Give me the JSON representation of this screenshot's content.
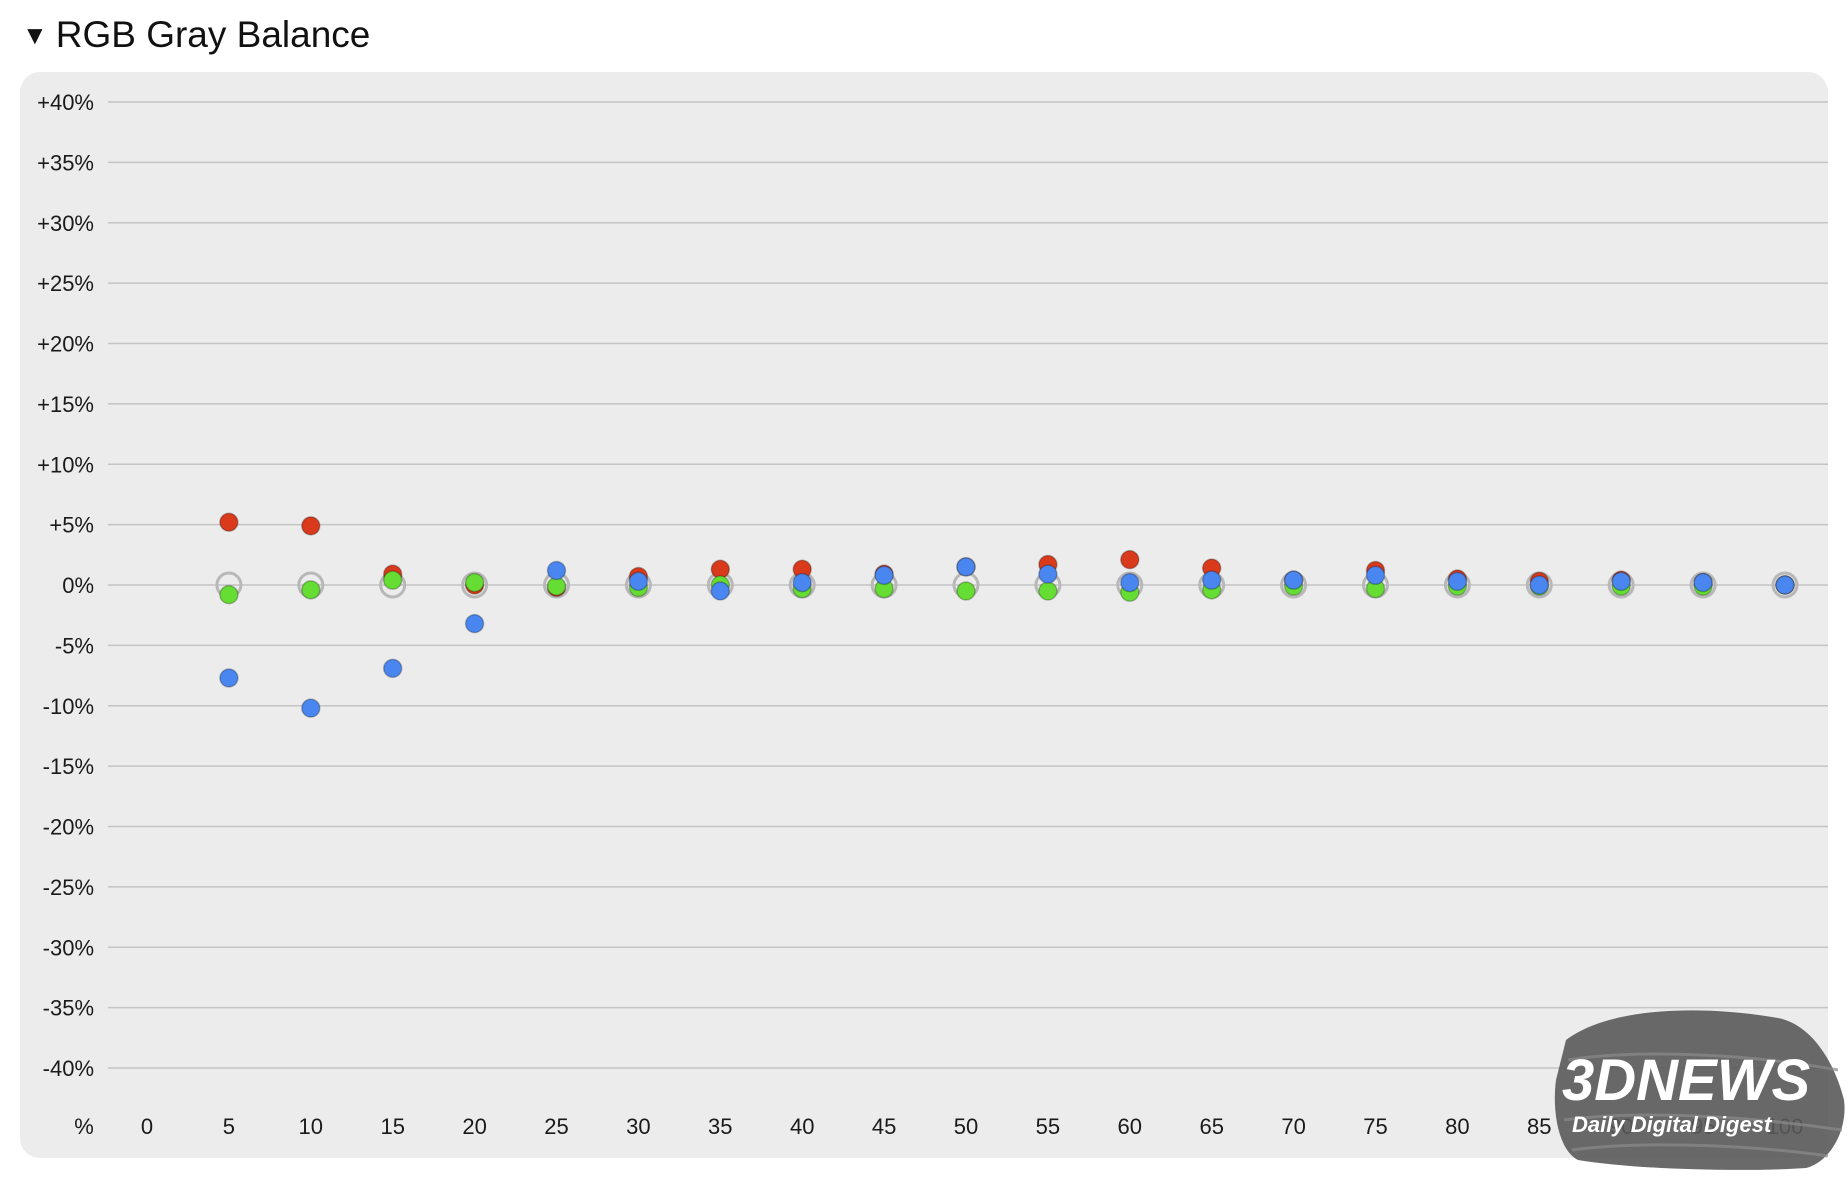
{
  "header": {
    "toggle_icon": "▼",
    "title": "RGB Gray Balance"
  },
  "colors": {
    "panel_bg": "#ececec",
    "grid": "#c4c4c4",
    "red": "#d93a1c",
    "green": "#66dd33",
    "blue": "#4a86f0",
    "target_ring": "#b8b8b8"
  },
  "chart_data": {
    "type": "scatter",
    "title": "RGB Gray Balance",
    "x_unit_label": "%",
    "x": [
      0,
      5,
      10,
      15,
      20,
      25,
      30,
      35,
      40,
      45,
      50,
      55,
      60,
      65,
      70,
      75,
      80,
      85,
      90,
      95,
      100
    ],
    "x_tick_labels": [
      "0",
      "5",
      "10",
      "15",
      "20",
      "25",
      "30",
      "35",
      "40",
      "45",
      "50",
      "55",
      "60",
      "65",
      "70",
      "75",
      "80",
      "85",
      "90",
      "95",
      "100"
    ],
    "ylim": [
      -40,
      40
    ],
    "y_ticks": [
      40,
      35,
      30,
      25,
      20,
      15,
      10,
      5,
      0,
      -5,
      -10,
      -15,
      -20,
      -25,
      -30,
      -35,
      -40
    ],
    "y_tick_labels": [
      "+40%",
      "+35%",
      "+30%",
      "+25%",
      "+20%",
      "+15%",
      "+10%",
      "+5%",
      "0%",
      "-5%",
      "-10%",
      "-15%",
      "-20%",
      "-25%",
      "-30%",
      "-35%",
      "-40%"
    ],
    "grid": true,
    "target": {
      "x": [
        5,
        10,
        15,
        20,
        25,
        30,
        35,
        40,
        45,
        50,
        55,
        60,
        65,
        70,
        75,
        80,
        85,
        90,
        95,
        100
      ],
      "y": 0
    },
    "series": [
      {
        "color_key": "red",
        "x": [
          5,
          10,
          15,
          20,
          25,
          30,
          35,
          40,
          45,
          50,
          55,
          60,
          65,
          70,
          75,
          80,
          85,
          90,
          95,
          100
        ],
        "y": [
          5.2,
          4.9,
          0.9,
          0.0,
          -0.2,
          0.7,
          1.3,
          1.3,
          0.9,
          1.5,
          1.7,
          2.1,
          1.4,
          0.4,
          1.2,
          0.5,
          0.3,
          0.4,
          0.2,
          0.0
        ]
      },
      {
        "color_key": "green",
        "x": [
          5,
          10,
          15,
          20,
          25,
          30,
          35,
          40,
          45,
          50,
          55,
          60,
          65,
          70,
          75,
          80,
          85,
          90,
          95,
          100
        ],
        "y": [
          -0.8,
          -0.4,
          0.4,
          0.2,
          -0.1,
          -0.2,
          0.0,
          -0.3,
          -0.3,
          -0.5,
          -0.5,
          -0.6,
          -0.4,
          -0.1,
          -0.3,
          -0.1,
          -0.1,
          -0.1,
          -0.1,
          0.0
        ]
      },
      {
        "color_key": "blue",
        "x": [
          5,
          10,
          15,
          20,
          25,
          30,
          35,
          40,
          45,
          50,
          55,
          60,
          65,
          70,
          75,
          80,
          85,
          90,
          95,
          100
        ],
        "y": [
          -7.7,
          -10.2,
          -6.9,
          -3.2,
          1.2,
          0.3,
          -0.5,
          0.2,
          0.8,
          1.5,
          0.9,
          0.2,
          0.4,
          0.4,
          0.8,
          0.3,
          0.0,
          0.3,
          0.2,
          0.0
        ]
      }
    ]
  },
  "watermark": {
    "brand": "3DNEWS",
    "tagline": "Daily Digital Digest"
  }
}
